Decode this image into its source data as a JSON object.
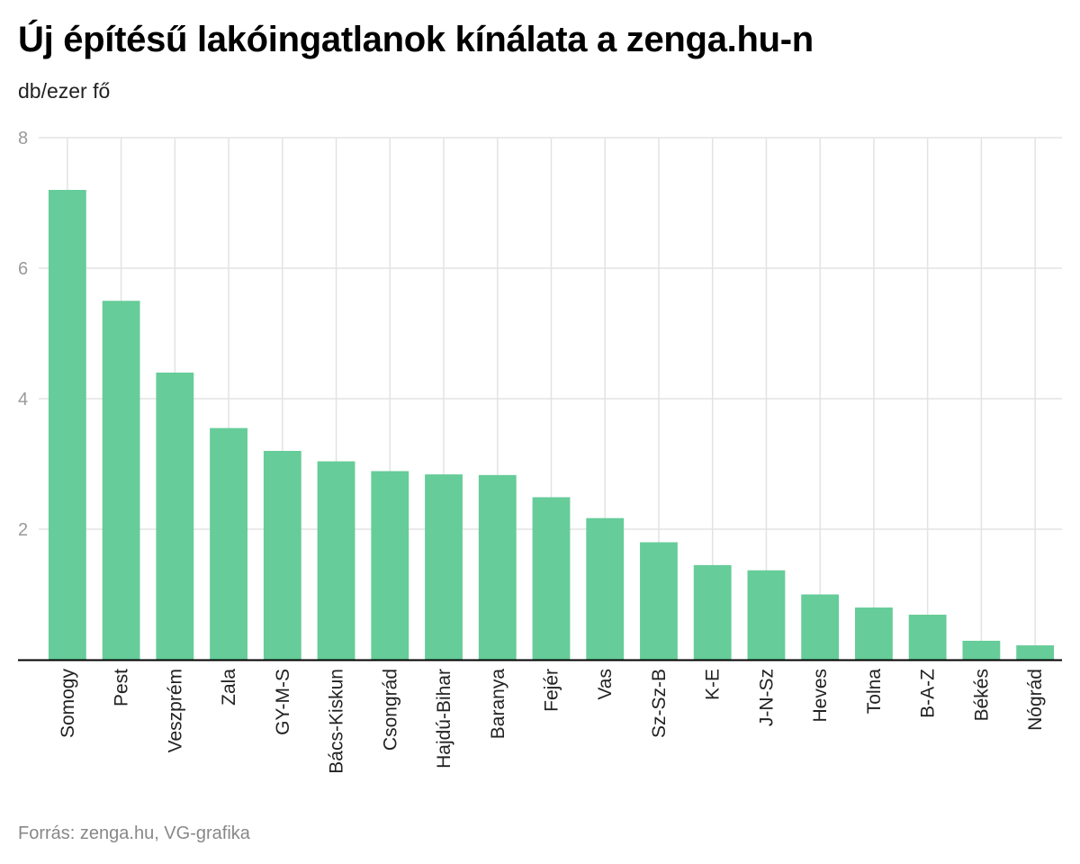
{
  "chart_data": {
    "type": "bar",
    "title": "Új építésű lakóingatlanok kínálata a zenga.hu-n",
    "subtitle": "db/ezer fő",
    "source": "Forrás: zenga.hu, VG-grafika",
    "categories": [
      "Somogy",
      "Pest",
      "Veszprém",
      "Zala",
      "GY-M-S",
      "Bács-Kiskun",
      "Csongrád",
      "Hajdú-Bihar",
      "Baranya",
      "Fejér",
      "Vas",
      "Sz-Sz-B",
      "K-E",
      "J-N-Sz",
      "Heves",
      "Tolna",
      "B-A-Z",
      "Békés",
      "Nógrád"
    ],
    "values": [
      7.2,
      5.5,
      4.4,
      3.55,
      3.2,
      3.04,
      2.89,
      2.84,
      2.83,
      2.49,
      2.17,
      1.8,
      1.45,
      1.37,
      1.0,
      0.8,
      0.69,
      0.29,
      0.22
    ],
    "ylim": [
      0,
      8
    ],
    "yticks": [
      2,
      4,
      6,
      8
    ],
    "grid": true,
    "bar_color": "#66cc99",
    "grid_color": "#e3e3e3",
    "axis_color": "#000000"
  }
}
